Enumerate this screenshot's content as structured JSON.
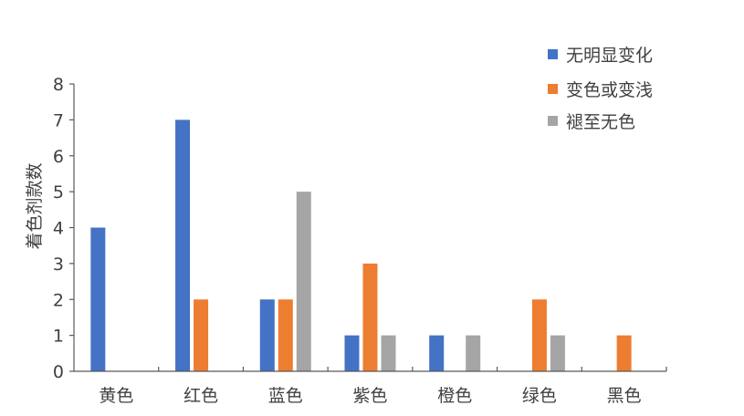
{
  "chart_data": {
    "type": "bar",
    "title": "",
    "xlabel": "",
    "ylabel": "着色剂款数",
    "ylim": [
      0,
      8
    ],
    "yticks": [
      0,
      1,
      2,
      3,
      4,
      5,
      6,
      7,
      8
    ],
    "grid": false,
    "legend_position": "top-right",
    "categories": [
      "黄色",
      "红色",
      "蓝色",
      "紫色",
      "橙色",
      "绿色",
      "黑色"
    ],
    "series": [
      {
        "name": "无明显变化",
        "color": "#4472C4",
        "values": [
          4,
          7,
          2,
          1,
          1,
          0,
          0
        ]
      },
      {
        "name": "变色或变浅",
        "color": "#ED7D31",
        "values": [
          0,
          2,
          2,
          3,
          0,
          2,
          1
        ]
      },
      {
        "name": "褪至无色",
        "color": "#A5A5A5",
        "values": [
          0,
          0,
          5,
          1,
          1,
          1,
          0
        ]
      }
    ]
  }
}
